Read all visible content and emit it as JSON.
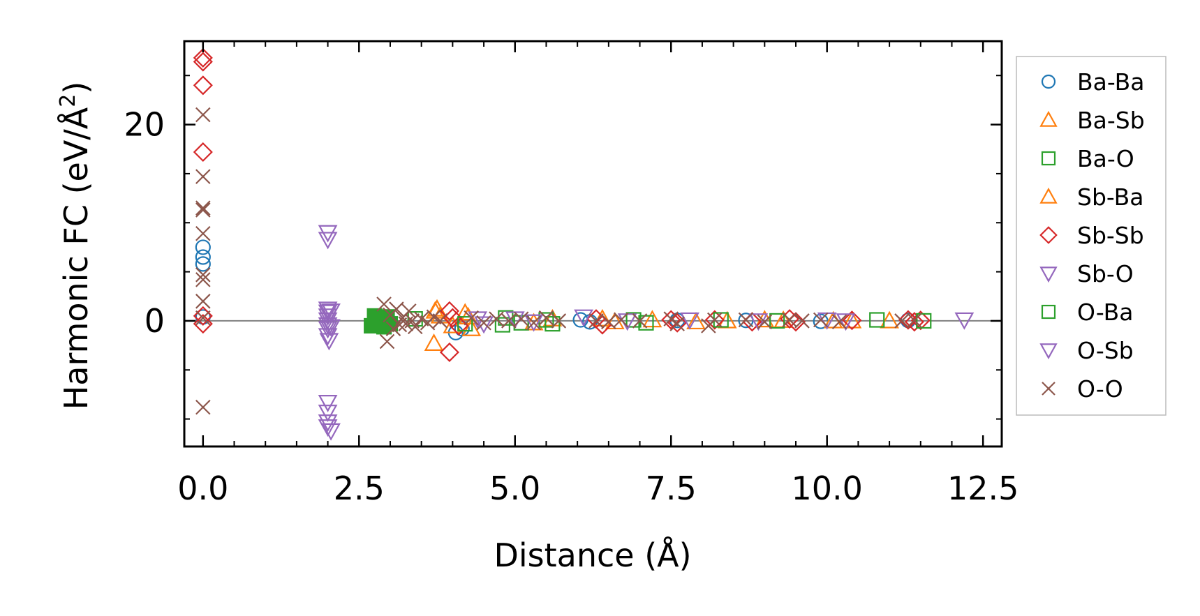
{
  "chart_data": {
    "type": "scatter",
    "title": "",
    "xlabel": "Distance (Å)",
    "ylabel_prefix": "Harmonic FC (eV/Å",
    "ylabel_sup": "2",
    "ylabel_suffix": ")",
    "xlim": [
      -0.3,
      12.8
    ],
    "ylim": [
      -12.8,
      28.5
    ],
    "x_ticks": [
      {
        "value": 0.0,
        "label": "0.0"
      },
      {
        "value": 2.5,
        "label": "2.5"
      },
      {
        "value": 5.0,
        "label": "5.0"
      },
      {
        "value": 7.5,
        "label": "7.5"
      },
      {
        "value": 10.0,
        "label": "10.0"
      },
      {
        "value": 12.5,
        "label": "12.5"
      }
    ],
    "y_ticks": [
      {
        "value": 0,
        "label": "0"
      },
      {
        "value": 20,
        "label": "20"
      }
    ],
    "x_minor_step": 0.5,
    "y_minor_step": 5,
    "reference_line_y": 0,
    "legend_position": "outside right",
    "series": [
      {
        "name": "Ba-Ba",
        "marker": "circle",
        "color": "#1f77b4",
        "filled": false,
        "points": [
          [
            0,
            7.5
          ],
          [
            0,
            6.5
          ],
          [
            0,
            5.8
          ],
          [
            0,
            0.4
          ],
          [
            4.05,
            -1.2
          ],
          [
            4.15,
            -0.8
          ],
          [
            6.05,
            0.1
          ],
          [
            6.2,
            -0.1
          ],
          [
            7.6,
            0.05
          ],
          [
            8.7,
            0.05
          ],
          [
            9.9,
            -0.05
          ],
          [
            11.3,
            0.05
          ]
        ]
      },
      {
        "name": "Ba-Sb",
        "marker": "triangle-up",
        "color": "#ff7f0e",
        "filled": false,
        "points": [
          [
            3.7,
            -2.3
          ],
          [
            3.75,
            1.2
          ],
          [
            3.8,
            0.5
          ],
          [
            4.0,
            -0.5
          ],
          [
            4.2,
            0.8
          ],
          [
            4.3,
            -0.8
          ],
          [
            5.6,
            0.2
          ],
          [
            6.6,
            -0.1
          ],
          [
            7.2,
            0.1
          ],
          [
            8.4,
            0
          ],
          [
            9.3,
            0.05
          ],
          [
            10.4,
            0
          ],
          [
            11.0,
            0
          ]
        ]
      },
      {
        "name": "Ba-O",
        "marker": "square",
        "color": "#2ca02c",
        "filled": true,
        "points": [
          [
            2.7,
            -0.5
          ],
          [
            2.75,
            0.5
          ],
          [
            2.8,
            -0.2
          ],
          [
            2.85,
            0.3
          ],
          [
            2.9,
            -0.6
          ],
          [
            2.95,
            0.4
          ],
          [
            3.0,
            -0.3
          ]
        ]
      },
      {
        "name": "Sb-Ba",
        "marker": "triangle-up",
        "color": "#ff7f0e",
        "filled": false,
        "points": [
          [
            3.72,
            1.0
          ],
          [
            4.25,
            0.4
          ],
          [
            5.3,
            -0.2
          ],
          [
            6.4,
            0.2
          ],
          [
            7.9,
            -0.1
          ],
          [
            9.0,
            0.1
          ],
          [
            10.1,
            0
          ]
        ]
      },
      {
        "name": "Sb-Sb",
        "marker": "diamond",
        "color": "#d62728",
        "filled": false,
        "points": [
          [
            0,
            26.8
          ],
          [
            0,
            26.4
          ],
          [
            0,
            24.0
          ],
          [
            0,
            17.2
          ],
          [
            0,
            0.5
          ],
          [
            0,
            -0.3
          ],
          [
            3.95,
            -3.2
          ],
          [
            3.95,
            1.0
          ],
          [
            4.0,
            0.3
          ],
          [
            4.1,
            -0.5
          ],
          [
            6.3,
            0.2
          ],
          [
            6.4,
            -0.4
          ],
          [
            7.5,
            0.1
          ],
          [
            7.6,
            -0.2
          ],
          [
            8.2,
            0.1
          ],
          [
            8.8,
            -0.1
          ],
          [
            9.4,
            0.2
          ],
          [
            9.5,
            -0.1
          ],
          [
            10.4,
            0.05
          ],
          [
            11.3,
            0.1
          ],
          [
            11.4,
            -0.1
          ],
          [
            11.5,
            0.05
          ]
        ]
      },
      {
        "name": "Sb-O",
        "marker": "triangle-down",
        "color": "#9467bd",
        "filled": false,
        "points": [
          [
            2.0,
            9.0
          ],
          [
            2.0,
            8.3
          ],
          [
            2.0,
            1.2
          ],
          [
            2.0,
            0.9
          ],
          [
            2.0,
            0.5
          ],
          [
            2.0,
            0.1
          ],
          [
            2.0,
            -0.4
          ],
          [
            2.0,
            -0.8
          ],
          [
            2.0,
            -1.5
          ],
          [
            2.02,
            -2.0
          ],
          [
            2.05,
            1.0
          ],
          [
            2.05,
            -0.6
          ],
          [
            12.2,
            0.1
          ]
        ]
      },
      {
        "name": "O-Ba",
        "marker": "square",
        "color": "#2ca02c",
        "filled": false,
        "points": [
          [
            3.4,
            0.2
          ],
          [
            4.2,
            -0.3
          ],
          [
            4.8,
            -0.4
          ],
          [
            4.85,
            0.3
          ],
          [
            5.1,
            -0.2
          ],
          [
            5.5,
            0.1
          ],
          [
            5.6,
            -0.3
          ],
          [
            6.9,
            0.1
          ],
          [
            7.1,
            -0.2
          ],
          [
            8.3,
            0.1
          ],
          [
            9.2,
            0
          ],
          [
            10.8,
            0.1
          ],
          [
            11.55,
            0
          ]
        ]
      },
      {
        "name": "O-Sb",
        "marker": "triangle-down",
        "color": "#9467bd",
        "filled": false,
        "points": [
          [
            2.0,
            -8.3
          ],
          [
            2.0,
            -9.3
          ],
          [
            2.0,
            -10.3
          ],
          [
            2.0,
            -10.8
          ],
          [
            2.05,
            -11.2
          ],
          [
            4.4,
            0.2
          ],
          [
            4.5,
            -0.3
          ],
          [
            5.0,
            0.2
          ],
          [
            5.3,
            -0.1
          ],
          [
            6.1,
            0.4
          ],
          [
            6.8,
            0
          ],
          [
            7.8,
            0.1
          ],
          [
            8.9,
            0
          ],
          [
            10.0,
            0.1
          ],
          [
            10.3,
            0
          ]
        ]
      },
      {
        "name": "O-O",
        "marker": "x",
        "color": "#8c564b",
        "filled": false,
        "points": [
          [
            0,
            21.0
          ],
          [
            0,
            14.7
          ],
          [
            0,
            11.5
          ],
          [
            0,
            11.3
          ],
          [
            0,
            8.9
          ],
          [
            0,
            4.7
          ],
          [
            0,
            4.2
          ],
          [
            0,
            2.0
          ],
          [
            0,
            0.3
          ],
          [
            0,
            -8.8
          ],
          [
            2.9,
            1.7
          ],
          [
            2.95,
            -2.1
          ],
          [
            3.0,
            0.6
          ],
          [
            3.05,
            -0.8
          ],
          [
            3.1,
            1.2
          ],
          [
            3.15,
            -0.4
          ],
          [
            3.2,
            0.3
          ],
          [
            3.25,
            -0.3
          ],
          [
            3.3,
            1.0
          ],
          [
            3.35,
            0
          ],
          [
            3.4,
            -0.6
          ],
          [
            3.5,
            0.2
          ],
          [
            3.6,
            -0.2
          ],
          [
            3.7,
            0.4
          ],
          [
            3.8,
            0
          ],
          [
            4.3,
            0.3
          ],
          [
            4.5,
            -0.2
          ],
          [
            4.7,
            0.2
          ],
          [
            4.9,
            0
          ],
          [
            5.1,
            0.2
          ],
          [
            5.3,
            -0.2
          ],
          [
            5.5,
            0.3
          ],
          [
            5.7,
            0
          ],
          [
            6.3,
            0
          ],
          [
            6.5,
            -0.1
          ],
          [
            6.7,
            0.1
          ],
          [
            7.0,
            0
          ],
          [
            7.5,
            0.2
          ],
          [
            7.6,
            -0.3
          ],
          [
            8.1,
            -0.5
          ],
          [
            8.2,
            0.1
          ],
          [
            8.7,
            0.1
          ],
          [
            9.0,
            -0.1
          ],
          [
            9.4,
            0.1
          ],
          [
            9.6,
            0
          ],
          [
            9.9,
            0.1
          ],
          [
            10.2,
            -0.1
          ],
          [
            11.2,
            0
          ],
          [
            11.4,
            0.05
          ]
        ]
      }
    ]
  }
}
